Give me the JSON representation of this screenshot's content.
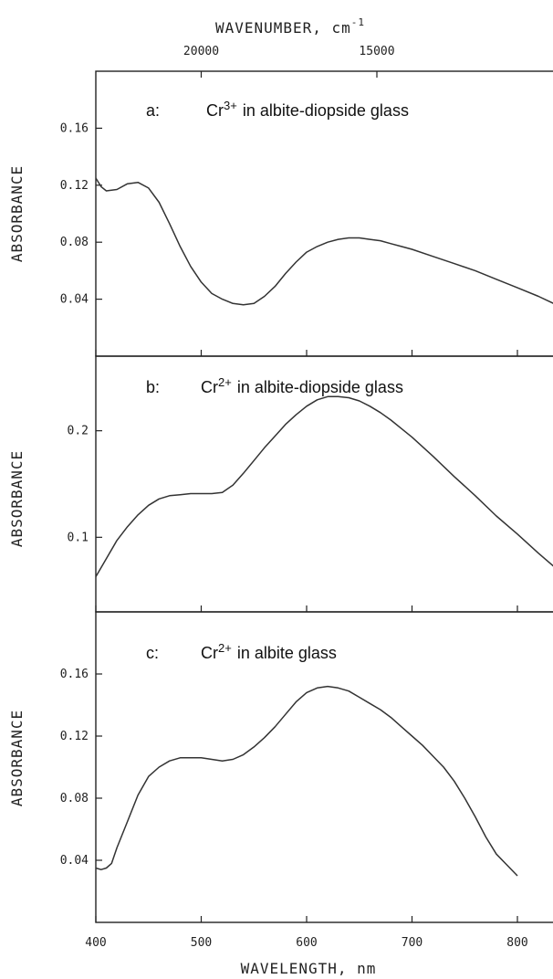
{
  "chart_data": [
    {
      "type": "line",
      "panel_label": "a:",
      "title_species": "Cr",
      "title_superscript": "3+",
      "title_rest": "in albite-diopside glass",
      "ylabel": "ABSORBANCE",
      "ylim": [
        0,
        0.2
      ],
      "yticks": [
        0.04,
        0.08,
        0.12,
        0.16
      ],
      "ytick_labels": [
        "0.04",
        "0.08",
        "0.12",
        "0.16"
      ],
      "xlim": [
        400,
        850
      ],
      "series": [
        {
          "x": [
            400,
            405,
            410,
            420,
            430,
            440,
            450,
            460,
            470,
            480,
            490,
            500,
            510,
            520,
            530,
            540,
            550,
            560,
            570,
            580,
            590,
            600,
            610,
            620,
            630,
            640,
            650,
            660,
            670,
            680,
            690,
            700,
            720,
            740,
            760,
            780,
            800,
            820,
            840,
            850
          ],
          "y": [
            0.125,
            0.119,
            0.116,
            0.117,
            0.121,
            0.122,
            0.118,
            0.108,
            0.093,
            0.077,
            0.063,
            0.052,
            0.044,
            0.04,
            0.037,
            0.036,
            0.037,
            0.042,
            0.049,
            0.058,
            0.066,
            0.073,
            0.077,
            0.08,
            0.082,
            0.083,
            0.083,
            0.082,
            0.081,
            0.079,
            0.077,
            0.075,
            0.07,
            0.065,
            0.06,
            0.054,
            0.048,
            0.042,
            0.035,
            0.031
          ]
        }
      ]
    },
    {
      "type": "line",
      "panel_label": "b:",
      "title_species": "Cr",
      "title_superscript": "2+",
      "title_rest": "in albite-diopside glass",
      "ylabel": "ABSORBANCE",
      "ylim": [
        0.03,
        0.27
      ],
      "yticks": [
        0.1,
        0.2
      ],
      "ytick_labels": [
        "0.1",
        "0.2"
      ],
      "xlim": [
        400,
        850
      ],
      "series": [
        {
          "x": [
            400,
            410,
            420,
            430,
            440,
            450,
            460,
            470,
            480,
            490,
            500,
            510,
            520,
            530,
            540,
            550,
            560,
            570,
            580,
            590,
            600,
            610,
            620,
            630,
            640,
            650,
            660,
            670,
            680,
            690,
            700,
            720,
            740,
            760,
            780,
            800,
            820,
            840,
            850
          ],
          "y": [
            0.063,
            0.08,
            0.097,
            0.11,
            0.121,
            0.13,
            0.136,
            0.139,
            0.14,
            0.141,
            0.141,
            0.141,
            0.142,
            0.149,
            0.16,
            0.172,
            0.184,
            0.195,
            0.206,
            0.215,
            0.223,
            0.229,
            0.232,
            0.232,
            0.231,
            0.228,
            0.223,
            0.217,
            0.21,
            0.202,
            0.194,
            0.176,
            0.157,
            0.139,
            0.12,
            0.103,
            0.085,
            0.068,
            0.059
          ]
        }
      ]
    },
    {
      "type": "line",
      "panel_label": "c:",
      "title_species": "Cr",
      "title_superscript": "2+",
      "title_rest": "in albite glass",
      "ylabel": "ABSORBANCE",
      "ylim": [
        0,
        0.2
      ],
      "yticks": [
        0.04,
        0.08,
        0.12,
        0.16
      ],
      "ytick_labels": [
        "0.04",
        "0.08",
        "0.12",
        "0.16"
      ],
      "xlim": [
        400,
        850
      ],
      "series": [
        {
          "x": [
            400,
            405,
            410,
            415,
            420,
            430,
            440,
            450,
            460,
            470,
            480,
            490,
            500,
            510,
            520,
            530,
            540,
            550,
            560,
            570,
            580,
            590,
            600,
            610,
            620,
            630,
            640,
            650,
            660,
            670,
            680,
            690,
            700,
            710,
            720,
            730,
            740,
            750,
            760,
            770,
            780,
            790,
            800
          ],
          "y": [
            0.035,
            0.034,
            0.035,
            0.038,
            0.048,
            0.065,
            0.082,
            0.094,
            0.1,
            0.104,
            0.106,
            0.106,
            0.106,
            0.105,
            0.104,
            0.105,
            0.108,
            0.113,
            0.119,
            0.126,
            0.134,
            0.142,
            0.148,
            0.151,
            0.152,
            0.151,
            0.149,
            0.145,
            0.141,
            0.137,
            0.132,
            0.126,
            0.12,
            0.114,
            0.107,
            0.1,
            0.091,
            0.08,
            0.068,
            0.055,
            0.044,
            0.037,
            0.03
          ]
        }
      ]
    }
  ],
  "xaxis": {
    "label": "WAVELENGTH, nm",
    "ticks": [
      400,
      500,
      600,
      700,
      800
    ],
    "tick_labels": [
      "400",
      "500",
      "600",
      "700",
      "800"
    ]
  },
  "top_axis": {
    "label": "WAVENUMBER, cm",
    "label_superscript": "-1",
    "ticks_cm": [
      20000,
      15000
    ],
    "tick_labels": [
      "20000",
      "15000"
    ]
  }
}
